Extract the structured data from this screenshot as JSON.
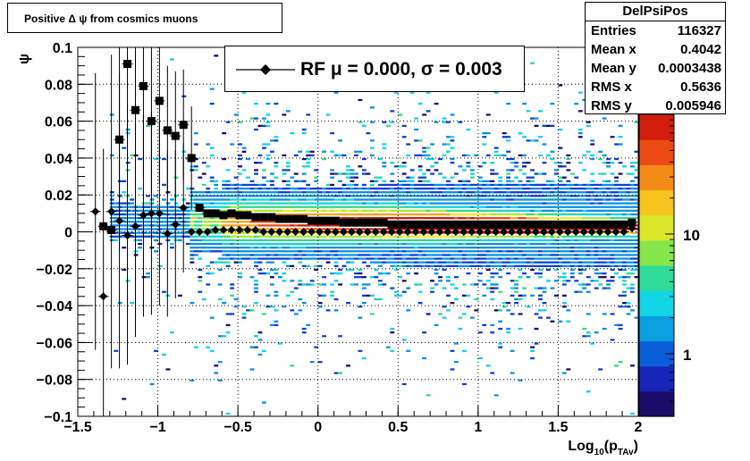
{
  "chart_data": {
    "type": "heatmap",
    "title": "Positive Δ ψ from cosmics muons",
    "xlabel": "Log",
    "xlabel_sub": "10",
    "xlabel_paren_open": "(p",
    "xlabel_sub2": "TAv",
    "xlabel_paren_close": ")",
    "ylabel": "ψ",
    "xlim": [
      -1.5,
      2
    ],
    "ylim": [
      -0.1,
      0.1
    ],
    "x_ticks": [
      -1.5,
      -1,
      -0.5,
      0,
      0.5,
      1,
      1.5,
      2
    ],
    "x_tick_labels": [
      "−1.5",
      "−1",
      "−0.5",
      "0",
      "0.5",
      "1",
      "1.5",
      "2"
    ],
    "y_ticks": [
      -0.1,
      -0.08,
      -0.06,
      -0.04,
      -0.02,
      0,
      0.02,
      0.04,
      0.06,
      0.08,
      0.1
    ],
    "y_tick_labels": [
      "−0.1",
      "−0.08",
      "−0.06",
      "−0.04",
      "−0.02",
      "0",
      "0.02",
      "0.04",
      "0.06",
      "0.08",
      "0.1"
    ],
    "grid": true,
    "colorbar": {
      "scale": "log",
      "zlim": [
        0.3,
        100
      ],
      "ticks": [
        1,
        10
      ],
      "tick_labels": [
        "1",
        "10"
      ],
      "colors": [
        "#1a0a6e",
        "#0c3fd6",
        "#0a8fe0",
        "#0fd3e8",
        "#35d987",
        "#a9e936",
        "#f2ea24",
        "#f8a21b",
        "#ee4415",
        "#c81b0a"
      ]
    },
    "legend": {
      "placement": "top-center",
      "label": "RF μ =  0.000, σ =   0.003",
      "marker": "diamond"
    },
    "stats": {
      "name": "DelPsiPos",
      "rows": [
        {
          "key": "Entries",
          "value": "116327"
        },
        {
          "key": "Mean x",
          "value": "0.4042"
        },
        {
          "key": "Mean y",
          "value": "0.0003438"
        },
        {
          "key": "RMS x",
          "value": "0.5636"
        },
        {
          "key": "RMS y",
          "value": "0.005946"
        }
      ]
    },
    "series": [
      {
        "marker": "square",
        "x": [
          -1.34,
          -1.29,
          -1.24,
          -1.19,
          -1.14,
          -1.09,
          -1.04,
          -0.99,
          -0.94,
          -0.89,
          -0.84,
          -0.79,
          -0.74,
          -0.69,
          -0.64,
          -0.59,
          -0.54,
          -0.49,
          -0.44,
          -0.39,
          -0.34,
          -0.29,
          -0.24,
          -0.19,
          -0.14,
          -0.09,
          -0.04,
          0.01,
          0.06,
          0.11,
          0.16,
          0.21,
          0.26,
          0.31,
          0.36,
          0.41,
          0.46,
          0.51,
          0.56,
          0.61,
          0.66,
          0.71,
          0.76,
          0.81,
          0.86,
          0.91,
          0.96,
          1.01,
          1.06,
          1.11,
          1.16,
          1.21,
          1.26,
          1.31,
          1.36,
          1.41,
          1.46,
          1.51,
          1.56,
          1.61,
          1.66,
          1.71,
          1.76,
          1.81,
          1.86,
          1.91,
          1.96
        ],
        "y": [
          0.003,
          0.001,
          0.05,
          0.091,
          0.066,
          0.079,
          0.06,
          0.071,
          0.055,
          0.052,
          0.058,
          0.04,
          0.013,
          0.01,
          0.01,
          0.009,
          0.01,
          0.009,
          0.009,
          0.008,
          0.008,
          0.008,
          0.007,
          0.007,
          0.007,
          0.007,
          0.006,
          0.006,
          0.006,
          0.006,
          0.005,
          0.005,
          0.005,
          0.005,
          0.005,
          0.005,
          0.004,
          0.004,
          0.004,
          0.004,
          0.004,
          0.004,
          0.004,
          0.004,
          0.004,
          0.004,
          0.004,
          0.004,
          0.004,
          0.004,
          0.004,
          0.004,
          0.004,
          0.004,
          0.004,
          0.004,
          0.004,
          0.004,
          0.004,
          0.004,
          0.004,
          0.004,
          0.004,
          0.004,
          0.004,
          0.004,
          0.005
        ],
        "yerr": [
          0.0,
          0.0,
          0.06,
          0.05,
          0.045,
          0.05,
          0.04,
          0.045,
          0.035,
          0.035,
          0.03,
          0.028,
          0.0,
          0.0,
          0.0,
          0.0,
          0.0,
          0.0,
          0.0,
          0.0,
          0.0,
          0.0,
          0.0,
          0.0,
          0.0,
          0.0,
          0.0,
          0.0,
          0.0,
          0.0,
          0.0,
          0.0,
          0.0,
          0.0,
          0.0,
          0.0,
          0.0,
          0.0,
          0.0,
          0.0,
          0.0,
          0.0,
          0.0,
          0.0,
          0.0,
          0.0,
          0.0,
          0.0,
          0.0,
          0.0,
          0.0,
          0.0,
          0.0,
          0.0,
          0.0,
          0.0,
          0.0,
          0.0,
          0.0,
          0.0,
          0.0,
          0.0,
          0.0,
          0.0,
          0.0,
          0.0,
          0.0
        ]
      },
      {
        "marker": "diamond",
        "x": [
          -1.39,
          -1.34,
          -1.29,
          -1.24,
          -1.19,
          -1.14,
          -1.09,
          -1.04,
          -0.99,
          -0.94,
          -0.89,
          -0.84,
          -0.79,
          -0.74,
          -0.69,
          -0.64,
          -0.59,
          -0.54,
          -0.49,
          -0.44,
          -0.39,
          -0.34,
          -0.29,
          -0.24,
          -0.19,
          -0.14,
          -0.09,
          -0.04,
          0.01,
          0.06,
          0.11,
          0.16,
          0.21,
          0.26,
          0.31,
          0.36,
          0.41,
          0.46,
          0.51,
          0.56,
          0.61,
          0.66,
          0.71,
          0.76,
          0.81,
          0.86,
          0.91,
          0.96,
          1.01,
          1.06,
          1.11,
          1.16,
          1.21,
          1.26,
          1.31,
          1.36,
          1.41,
          1.46,
          1.51,
          1.56,
          1.61,
          1.66,
          1.71,
          1.76,
          1.81,
          1.86,
          1.91,
          1.96
        ],
        "y": [
          0.011,
          -0.035,
          0.011,
          0.006,
          -0.002,
          0.003,
          0.009,
          0.01,
          0.01,
          -0.001,
          0.004,
          0.013,
          0.0,
          0.0,
          0.0,
          0.001,
          0.001,
          0.001,
          0.001,
          0.001,
          0.001,
          0.0,
          0.0,
          0.0,
          0.0,
          0.0,
          0.0,
          0.0,
          0.0,
          0.0,
          0.0,
          0.0,
          0.0,
          0.0,
          0.0,
          0.0,
          0.0,
          0.0,
          0.0,
          0.0,
          0.0,
          0.0,
          0.0,
          0.0,
          0.0,
          0.0,
          0.0,
          0.0,
          0.0,
          0.0,
          0.0,
          0.0,
          0.0,
          0.0,
          0.0,
          0.0,
          0.0,
          0.0,
          0.0,
          0.0,
          0.0,
          0.0,
          0.0,
          0.0,
          0.0,
          0.0,
          0.0,
          0.002
        ],
        "yerr": [
          0.075,
          0.08,
          0.085,
          0.08,
          0.07,
          0.06,
          0.055,
          0.055,
          0.05,
          0.045,
          0.04,
          0.035,
          0.0,
          0.0,
          0.0,
          0.0,
          0.0,
          0.0,
          0.0,
          0.0,
          0.0,
          0.0,
          0.0,
          0.0,
          0.0,
          0.0,
          0.0,
          0.0,
          0.0,
          0.0,
          0.0,
          0.0,
          0.0,
          0.0,
          0.0,
          0.0,
          0.0,
          0.0,
          0.0,
          0.0,
          0.0,
          0.0,
          0.0,
          0.0,
          0.0,
          0.0,
          0.0,
          0.0,
          0.0,
          0.0,
          0.0,
          0.0,
          0.0,
          0.0,
          0.0,
          0.0,
          0.0,
          0.0,
          0.0,
          0.0,
          0.0,
          0.0,
          0.0,
          0.0,
          0.0,
          0.0,
          0.0,
          0.0
        ]
      }
    ]
  }
}
